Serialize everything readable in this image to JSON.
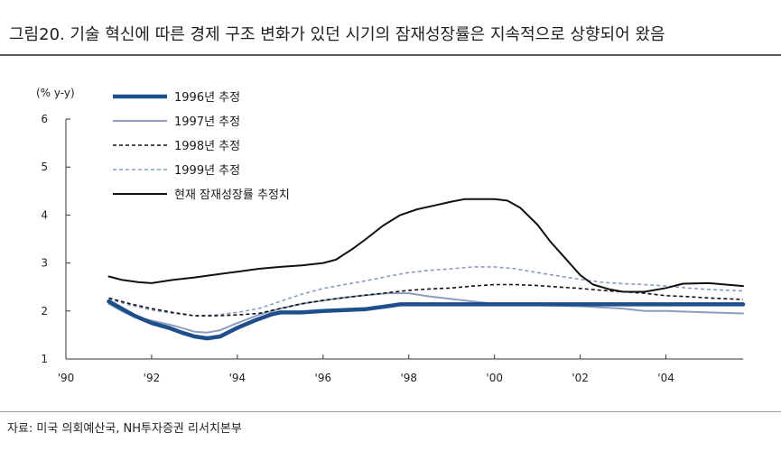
{
  "title": "그림20. 기술 혁신에 따른 경제 구조 변화가 있던 시기의 잠재성장률은 지속적으로 상향되어 왔음",
  "source": "자료: 미국 의회예산국, NH투자증권 리서치본부",
  "chart_data": {
    "type": "line",
    "ylabel": "(% y-y)",
    "xlabel": "",
    "ylim": [
      1,
      6
    ],
    "xlim": [
      1990,
      2005.8
    ],
    "yticks": [
      1,
      2,
      3,
      4,
      5,
      6
    ],
    "xticks": [
      1990,
      1992,
      1994,
      1996,
      1998,
      2000,
      2002,
      2004
    ],
    "xtick_labels": [
      "'90",
      "'92",
      "'94",
      "'96",
      "'98",
      "'00",
      "'02",
      "'04"
    ],
    "grid": false,
    "legend": "top-left",
    "series": [
      {
        "name": "1996년 추정",
        "color": "#1f4e8c",
        "style": "solid-thick",
        "points": [
          [
            1991.0,
            2.2
          ],
          [
            1991.3,
            2.05
          ],
          [
            1991.6,
            1.9
          ],
          [
            1992.0,
            1.75
          ],
          [
            1992.4,
            1.65
          ],
          [
            1992.7,
            1.55
          ],
          [
            1993.0,
            1.47
          ],
          [
            1993.3,
            1.43
          ],
          [
            1993.6,
            1.47
          ],
          [
            1994.0,
            1.65
          ],
          [
            1994.4,
            1.8
          ],
          [
            1994.8,
            1.93
          ],
          [
            1995.0,
            1.97
          ],
          [
            1995.5,
            1.97
          ],
          [
            1996.0,
            2.0
          ],
          [
            1996.5,
            2.02
          ],
          [
            1997.0,
            2.04
          ],
          [
            1997.5,
            2.1
          ],
          [
            1997.8,
            2.14
          ],
          [
            1998.5,
            2.14
          ],
          [
            1999.0,
            2.14
          ],
          [
            2000.0,
            2.14
          ],
          [
            2001.0,
            2.14
          ],
          [
            2002.0,
            2.14
          ],
          [
            2003.0,
            2.14
          ],
          [
            2004.0,
            2.14
          ],
          [
            2005.8,
            2.14
          ]
        ]
      },
      {
        "name": "1997년 추정",
        "color": "#8c9dbf",
        "style": "solid",
        "points": [
          [
            1991.0,
            2.15
          ],
          [
            1991.3,
            2.0
          ],
          [
            1991.6,
            1.88
          ],
          [
            1992.0,
            1.8
          ],
          [
            1992.5,
            1.7
          ],
          [
            1993.0,
            1.57
          ],
          [
            1993.3,
            1.55
          ],
          [
            1993.6,
            1.6
          ],
          [
            1994.0,
            1.75
          ],
          [
            1994.5,
            1.92
          ],
          [
            1995.0,
            2.05
          ],
          [
            1995.5,
            2.15
          ],
          [
            1996.0,
            2.22
          ],
          [
            1996.5,
            2.28
          ],
          [
            1997.0,
            2.33
          ],
          [
            1997.5,
            2.37
          ],
          [
            1998.0,
            2.37
          ],
          [
            1998.5,
            2.3
          ],
          [
            1999.0,
            2.25
          ],
          [
            1999.5,
            2.2
          ],
          [
            2000.0,
            2.15
          ],
          [
            2001.0,
            2.12
          ],
          [
            2002.0,
            2.1
          ],
          [
            2003.0,
            2.05
          ],
          [
            2003.5,
            2.0
          ],
          [
            2004.0,
            2.0
          ],
          [
            2005.0,
            1.97
          ],
          [
            2005.8,
            1.95
          ]
        ]
      },
      {
        "name": "1998년 추정",
        "color": "#111111",
        "style": "dashed",
        "points": [
          [
            1991.0,
            2.27
          ],
          [
            1991.5,
            2.15
          ],
          [
            1992.0,
            2.05
          ],
          [
            1992.5,
            1.97
          ],
          [
            1993.0,
            1.9
          ],
          [
            1993.5,
            1.9
          ],
          [
            1994.0,
            1.92
          ],
          [
            1994.5,
            1.95
          ],
          [
            1995.0,
            2.05
          ],
          [
            1995.5,
            2.15
          ],
          [
            1996.0,
            2.22
          ],
          [
            1996.5,
            2.28
          ],
          [
            1997.0,
            2.33
          ],
          [
            1997.5,
            2.38
          ],
          [
            1998.0,
            2.43
          ],
          [
            1998.5,
            2.46
          ],
          [
            1999.0,
            2.48
          ],
          [
            1999.5,
            2.52
          ],
          [
            2000.0,
            2.55
          ],
          [
            2000.5,
            2.55
          ],
          [
            2001.0,
            2.53
          ],
          [
            2001.5,
            2.5
          ],
          [
            2002.0,
            2.47
          ],
          [
            2002.5,
            2.43
          ],
          [
            2003.0,
            2.4
          ],
          [
            2003.5,
            2.37
          ],
          [
            2004.0,
            2.32
          ],
          [
            2004.5,
            2.3
          ],
          [
            2005.0,
            2.27
          ],
          [
            2005.8,
            2.24
          ]
        ]
      },
      {
        "name": "1999년 추정",
        "color": "#8a9ac4",
        "style": "dashed",
        "points": [
          [
            1991.0,
            2.25
          ],
          [
            1991.5,
            2.12
          ],
          [
            1992.0,
            2.02
          ],
          [
            1992.5,
            1.95
          ],
          [
            1993.0,
            1.9
          ],
          [
            1993.5,
            1.92
          ],
          [
            1994.0,
            1.97
          ],
          [
            1994.5,
            2.05
          ],
          [
            1995.0,
            2.2
          ],
          [
            1995.5,
            2.35
          ],
          [
            1996.0,
            2.47
          ],
          [
            1996.5,
            2.55
          ],
          [
            1997.0,
            2.63
          ],
          [
            1997.5,
            2.72
          ],
          [
            1998.0,
            2.8
          ],
          [
            1998.5,
            2.85
          ],
          [
            1999.0,
            2.88
          ],
          [
            1999.5,
            2.92
          ],
          [
            2000.0,
            2.92
          ],
          [
            2000.5,
            2.88
          ],
          [
            2001.0,
            2.8
          ],
          [
            2001.5,
            2.73
          ],
          [
            2002.0,
            2.66
          ],
          [
            2002.5,
            2.6
          ],
          [
            2003.0,
            2.57
          ],
          [
            2003.5,
            2.55
          ],
          [
            2004.0,
            2.52
          ],
          [
            2004.5,
            2.48
          ],
          [
            2005.0,
            2.45
          ],
          [
            2005.8,
            2.42
          ]
        ]
      },
      {
        "name": "현재 잠재성장률 추정치",
        "color": "#111111",
        "style": "solid",
        "points": [
          [
            1991.0,
            2.72
          ],
          [
            1991.3,
            2.65
          ],
          [
            1991.7,
            2.6
          ],
          [
            1992.0,
            2.58
          ],
          [
            1992.5,
            2.65
          ],
          [
            1993.0,
            2.7
          ],
          [
            1993.5,
            2.76
          ],
          [
            1994.0,
            2.82
          ],
          [
            1994.5,
            2.88
          ],
          [
            1995.0,
            2.92
          ],
          [
            1995.5,
            2.95
          ],
          [
            1996.0,
            3.0
          ],
          [
            1996.3,
            3.07
          ],
          [
            1996.7,
            3.3
          ],
          [
            1997.0,
            3.5
          ],
          [
            1997.4,
            3.78
          ],
          [
            1997.8,
            4.0
          ],
          [
            1998.2,
            4.12
          ],
          [
            1998.6,
            4.2
          ],
          [
            1999.0,
            4.28
          ],
          [
            1999.3,
            4.33
          ],
          [
            1999.7,
            4.33
          ],
          [
            2000.0,
            4.33
          ],
          [
            2000.3,
            4.3
          ],
          [
            2000.6,
            4.15
          ],
          [
            2001.0,
            3.8
          ],
          [
            2001.3,
            3.45
          ],
          [
            2001.7,
            3.05
          ],
          [
            2002.0,
            2.75
          ],
          [
            2002.3,
            2.55
          ],
          [
            2002.7,
            2.45
          ],
          [
            2003.0,
            2.4
          ],
          [
            2003.5,
            2.4
          ],
          [
            2004.0,
            2.48
          ],
          [
            2004.4,
            2.57
          ],
          [
            2005.0,
            2.58
          ],
          [
            2005.8,
            2.52
          ]
        ]
      }
    ]
  }
}
